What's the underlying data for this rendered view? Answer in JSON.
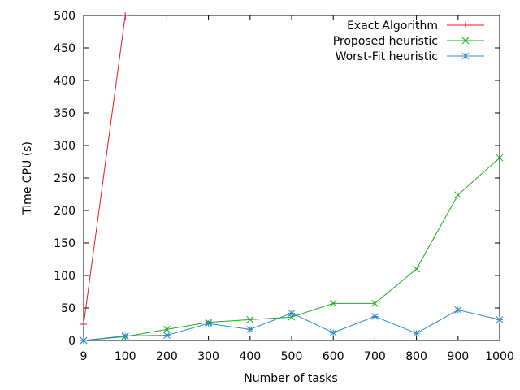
{
  "chart_data": {
    "type": "line",
    "title": "",
    "xlabel": "Number of tasks",
    "ylabel": "Time CPU (s)",
    "x_ticks": [
      "9",
      "100",
      "200",
      "300",
      "400",
      "500",
      "600",
      "700",
      "800",
      "900",
      "1000"
    ],
    "y_ticks": [
      "0",
      "50",
      "100",
      "150",
      "200",
      "250",
      "300",
      "350",
      "400",
      "450",
      "500"
    ],
    "ylim": [
      0,
      500
    ],
    "grid": false,
    "legend_position": "top-right",
    "series": [
      {
        "name": "Exact Algorithm",
        "color": "#e41a1c",
        "marker": "plus",
        "x": [
          "9",
          "100"
        ],
        "values": [
          25,
          500
        ]
      },
      {
        "name": "Proposed heuristic",
        "color": "#1aac1a",
        "marker": "x",
        "x": [
          "9",
          "100",
          "200",
          "300",
          "400",
          "500",
          "600",
          "700",
          "800",
          "900",
          "1000"
        ],
        "values": [
          0,
          6,
          17,
          28,
          32,
          36,
          57,
          57,
          110,
          224,
          281
        ]
      },
      {
        "name": "Worst-Fit heuristic",
        "color": "#2f88c9",
        "marker": "star",
        "x": [
          "9",
          "100",
          "200",
          "300",
          "400",
          "500",
          "600",
          "700",
          "800",
          "900",
          "1000"
        ],
        "values": [
          0,
          7,
          8,
          26,
          17,
          42,
          12,
          37,
          11,
          47,
          32
        ]
      }
    ]
  }
}
